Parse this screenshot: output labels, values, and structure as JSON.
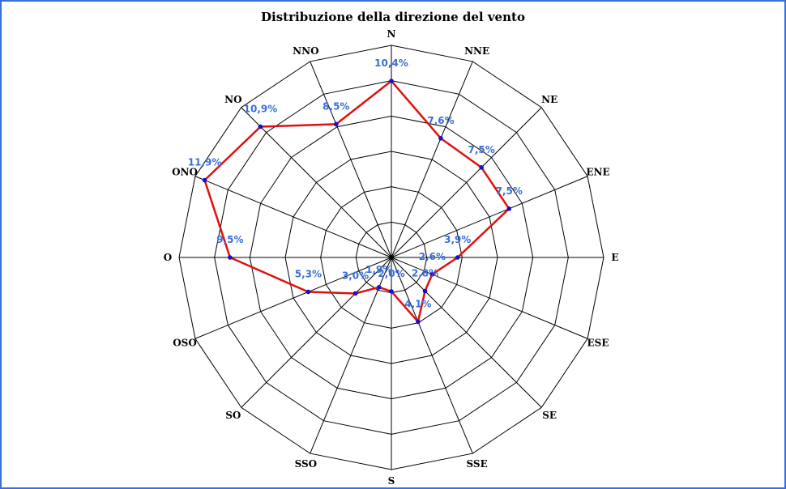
{
  "chart_data": {
    "type": "radar",
    "title": "Distribuzione della direzione del vento",
    "categories": [
      "N",
      "NNE",
      "NE",
      "ENE",
      "E",
      "ESE",
      "SE",
      "SSE",
      "S",
      "SSO",
      "SO",
      "OSO",
      "O",
      "ONO",
      "NO",
      "NNO"
    ],
    "series": [
      {
        "values": [
          10.4,
          7.6,
          7.5,
          7.5,
          3.9,
          2.6,
          2.8,
          4.1,
          2.0,
          1.9,
          3.0,
          5.3,
          9.5,
          11.9,
          10.9,
          8.5
        ],
        "labels": [
          "10,4%",
          "7,6%",
          "7,5%",
          "7,5%",
          "3,9%",
          "2,6%",
          "2,8%",
          "4,1%",
          "2,0%",
          "1,9%",
          "3,0%",
          "5,3%",
          "9,5%",
          "11,9%",
          "10,9%",
          "8,5%"
        ]
      }
    ],
    "rlim": [
      0,
      12.5
    ],
    "rings": 6,
    "grid": true
  },
  "colors": {
    "series_line": "#e01010",
    "series_point": "#1010d0",
    "value_label": "#3a6fd8",
    "grid": "#000000",
    "border": "#3a6fd8"
  }
}
